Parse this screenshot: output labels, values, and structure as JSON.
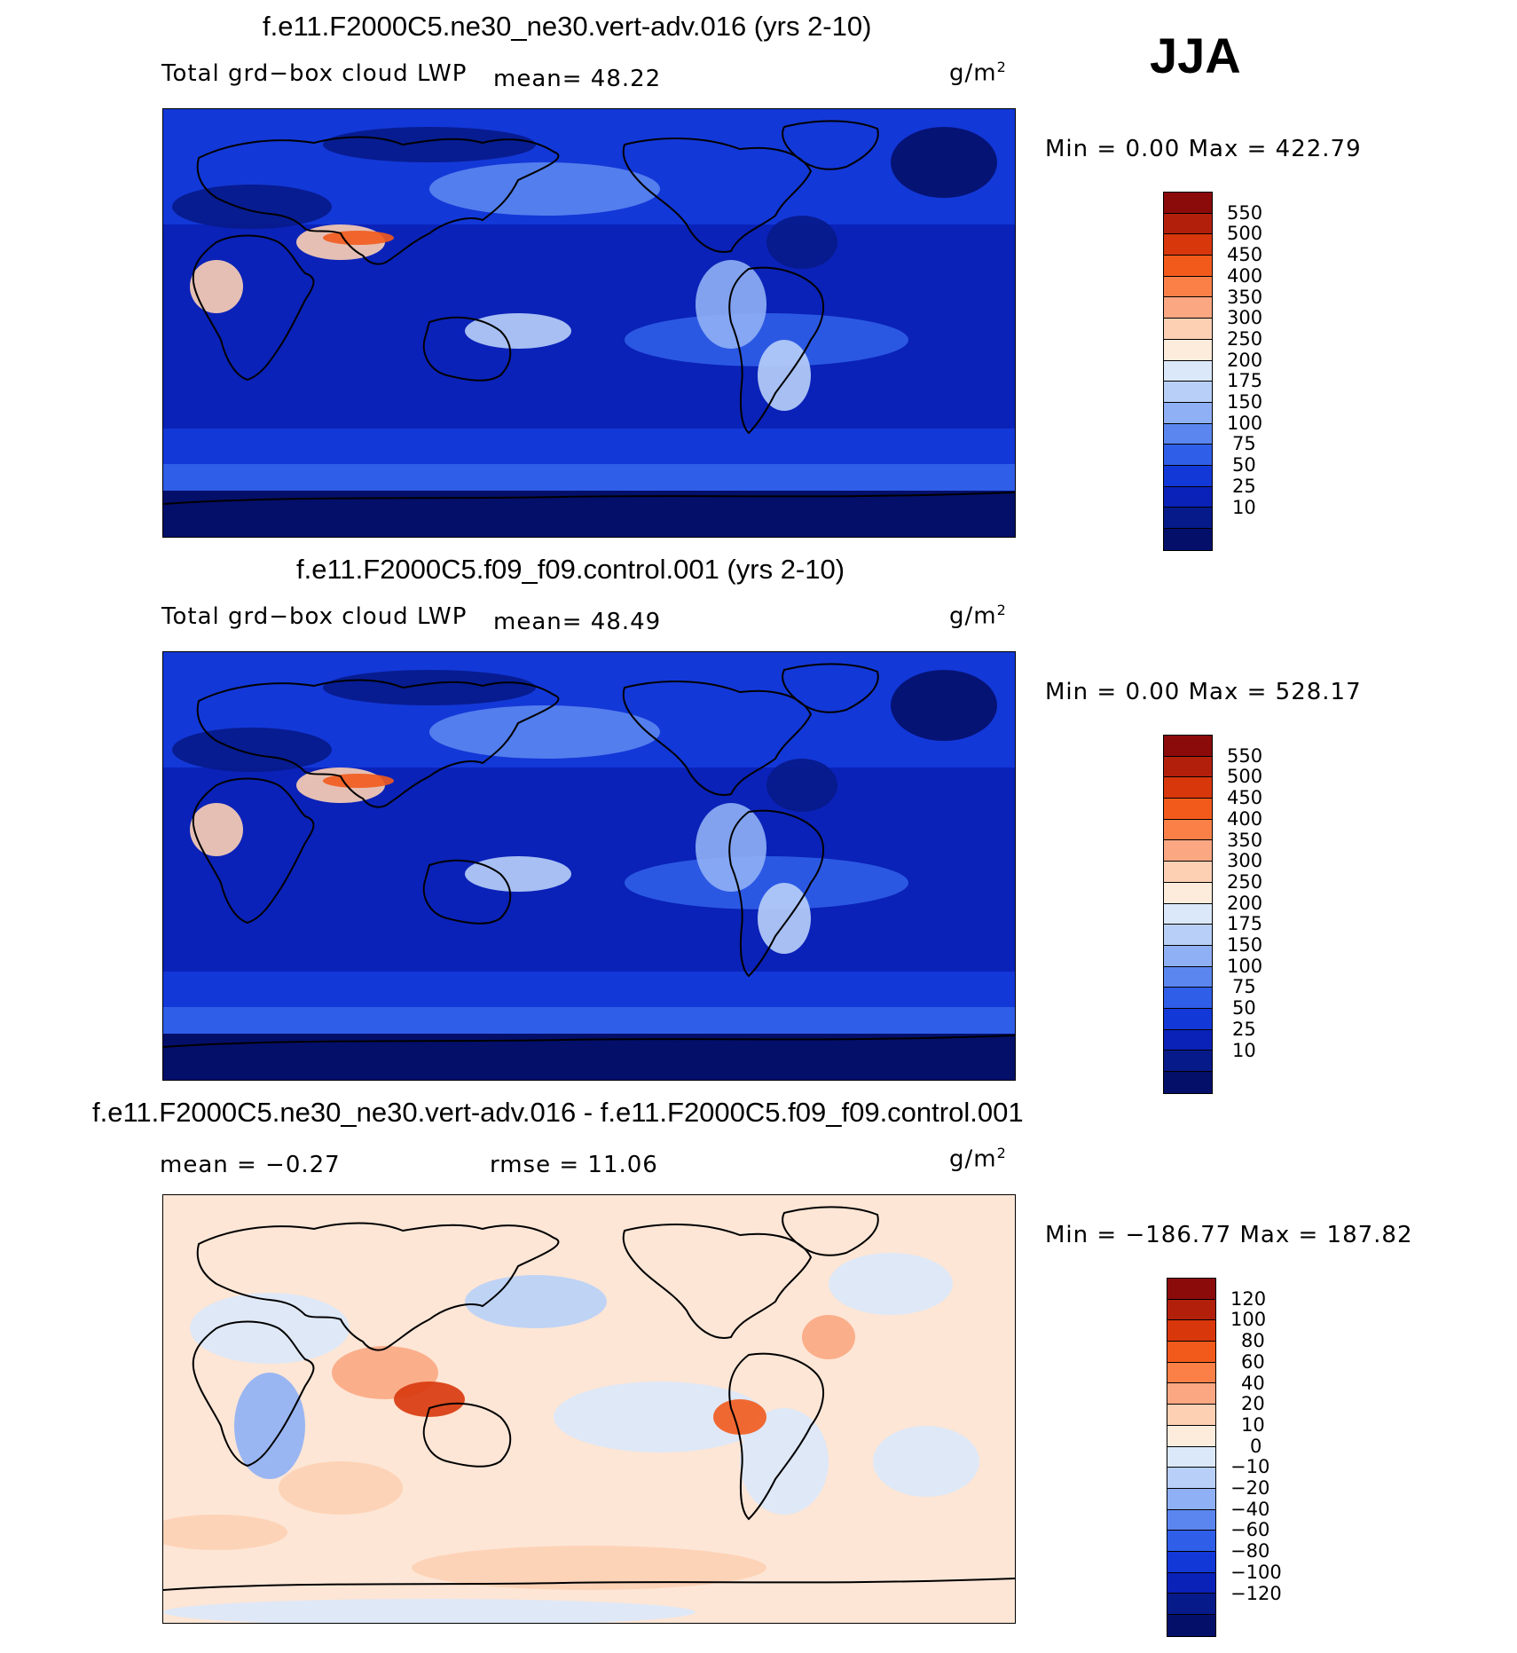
{
  "season": "JJA",
  "panels": [
    {
      "title": "f.e11.F2000C5.ne30_ne30.vert-adv.016 (yrs 2-10)",
      "left_label": "Total grd−box cloud LWP",
      "center_label": "mean=   48.22",
      "unit_base": "g/m",
      "unit_exp": "2",
      "minmax": "Min  =     0.00  Max  =  422.79",
      "colorbar": {
        "colors": [
          "#8b0a0a",
          "#b2200c",
          "#d8370c",
          "#f25a1c",
          "#fa8048",
          "#fba782",
          "#fdd0b4",
          "#fdecdc",
          "#dbe8fa",
          "#b8d0f8",
          "#8fb0f5",
          "#5b86f0",
          "#2f5ee8",
          "#1338d8",
          "#0a22b8",
          "#071a8a",
          "#040f6a"
        ],
        "ticks": [
          "550",
          "500",
          "450",
          "400",
          "350",
          "300",
          "250",
          "200",
          "175",
          "150",
          "100",
          "75",
          "50",
          "25",
          "10"
        ]
      },
      "map_tone": "abs1"
    },
    {
      "title": "f.e11.F2000C5.f09_f09.control.001 (yrs 2-10)",
      "left_label": "Total grd−box cloud LWP",
      "center_label": "mean=   48.49",
      "unit_base": "g/m",
      "unit_exp": "2",
      "minmax": "Min  =     0.00  Max  =  528.17",
      "colorbar": {
        "colors": [
          "#8b0a0a",
          "#b2200c",
          "#d8370c",
          "#f25a1c",
          "#fa8048",
          "#fba782",
          "#fdd0b4",
          "#fdecdc",
          "#dbe8fa",
          "#b8d0f8",
          "#8fb0f5",
          "#5b86f0",
          "#2f5ee8",
          "#1338d8",
          "#0a22b8",
          "#071a8a",
          "#040f6a"
        ],
        "ticks": [
          "550",
          "500",
          "450",
          "400",
          "350",
          "300",
          "250",
          "200",
          "175",
          "150",
          "100",
          "75",
          "50",
          "25",
          "10"
        ]
      },
      "map_tone": "abs2"
    },
    {
      "title": "f.e11.F2000C5.ne30_ne30.vert-adv.016 - f.e11.F2000C5.f09_f09.control.001",
      "left_label": "mean  =   −0.27",
      "center_label": "rmse  =    11.06",
      "unit_base": "g/m",
      "unit_exp": "2",
      "minmax": "Min  = −186.77  Max  =  187.82",
      "colorbar": {
        "colors": [
          "#8b0a0a",
          "#b2200c",
          "#d8370c",
          "#f25a1c",
          "#fa8048",
          "#fba782",
          "#fdd0b4",
          "#fdecdc",
          "#dbe8fa",
          "#b8d0f8",
          "#8fb0f5",
          "#5b86f0",
          "#2f5ee8",
          "#1338d8",
          "#0a22b8",
          "#071a8a",
          "#040f6a"
        ],
        "ticks": [
          "120",
          "100",
          "80",
          "60",
          "40",
          "20",
          "10",
          "0",
          "−10",
          "−20",
          "−40",
          "−60",
          "−80",
          "−100",
          "−120"
        ]
      },
      "map_tone": "diff"
    }
  ]
}
